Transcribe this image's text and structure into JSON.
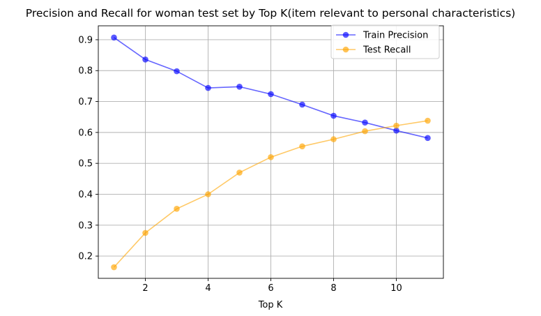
{
  "chart_data": {
    "type": "line",
    "title": "Precision and Recall for woman test set by Top K(item relevant to personal characteristics)",
    "xlabel": "Top K",
    "ylabel": "",
    "x": [
      1,
      2,
      3,
      4,
      5,
      6,
      7,
      8,
      9,
      10,
      11
    ],
    "xlim": [
      0.5,
      11.5
    ],
    "ylim": [
      0.128,
      0.945
    ],
    "xticks": [
      2,
      4,
      6,
      8,
      10
    ],
    "yticks": [
      0.2,
      0.3,
      0.4,
      0.5,
      0.6,
      0.7,
      0.8,
      0.9
    ],
    "grid": true,
    "legend_position": "top-right",
    "series": [
      {
        "name": "Train Precision",
        "color": "#0000ff",
        "values": [
          0.907,
          0.836,
          0.798,
          0.744,
          0.748,
          0.724,
          0.69,
          0.654,
          0.632,
          0.606,
          0.582
        ]
      },
      {
        "name": "Test Recall",
        "color": "#ffa500",
        "values": [
          0.164,
          0.275,
          0.353,
          0.4,
          0.47,
          0.52,
          0.555,
          0.578,
          0.604,
          0.622,
          0.638
        ]
      }
    ]
  }
}
